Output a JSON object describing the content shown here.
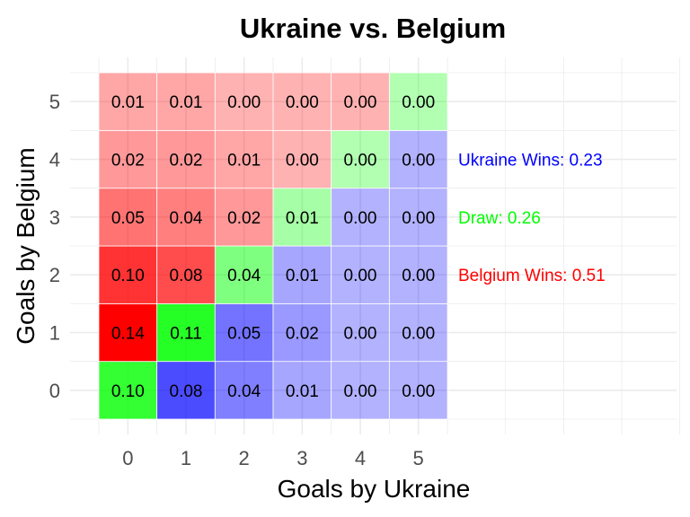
{
  "chart_data": {
    "type": "heatmap",
    "title": "Ukraine vs. Belgium",
    "xlabel": "Goals by Ukraine",
    "ylabel": "Goals by Belgium",
    "x_categories": [
      "0",
      "1",
      "2",
      "3",
      "4",
      "5"
    ],
    "y_categories": [
      "0",
      "1",
      "2",
      "3",
      "4",
      "5"
    ],
    "cells": [
      [
        0.1,
        0.08,
        0.04,
        0.01,
        0.0,
        0.0
      ],
      [
        0.14,
        0.11,
        0.05,
        0.02,
        0.0,
        0.0
      ],
      [
        0.1,
        0.08,
        0.04,
        0.01,
        0.0,
        0.0
      ],
      [
        0.05,
        0.04,
        0.02,
        0.01,
        0.0,
        0.0
      ],
      [
        0.02,
        0.02,
        0.01,
        0.0,
        0.0,
        0.0
      ],
      [
        0.01,
        0.01,
        0.0,
        0.0,
        0.0,
        0.0
      ]
    ],
    "cell_labels": [
      [
        "0.10",
        "0.08",
        "0.04",
        "0.01",
        "0.00",
        "0.00"
      ],
      [
        "0.14",
        "0.11",
        "0.05",
        "0.02",
        "0.00",
        "0.00"
      ],
      [
        "0.10",
        "0.08",
        "0.04",
        "0.01",
        "0.00",
        "0.00"
      ],
      [
        "0.05",
        "0.04",
        "0.02",
        "0.01",
        "0.00",
        "0.00"
      ],
      [
        "0.02",
        "0.02",
        "0.01",
        "0.00",
        "0.00",
        "0.00"
      ],
      [
        "0.01",
        "0.01",
        "0.00",
        "0.00",
        "0.00",
        "0.00"
      ]
    ],
    "annotations": [
      {
        "text": "Ukraine Wins: 0.23",
        "color": "#0000ff"
      },
      {
        "text": "Draw: 0.26",
        "color": "#00ff00"
      },
      {
        "text": "Belgium Wins: 0.51",
        "color": "#ff0000"
      }
    ],
    "colors": {
      "ukraine_win": "#0000ff",
      "draw": "#00ff00",
      "belgium_win": "#ff0000",
      "grid": "#ebebeb",
      "text": "#000000",
      "tick": "#4d4d4d"
    },
    "grid": true
  }
}
